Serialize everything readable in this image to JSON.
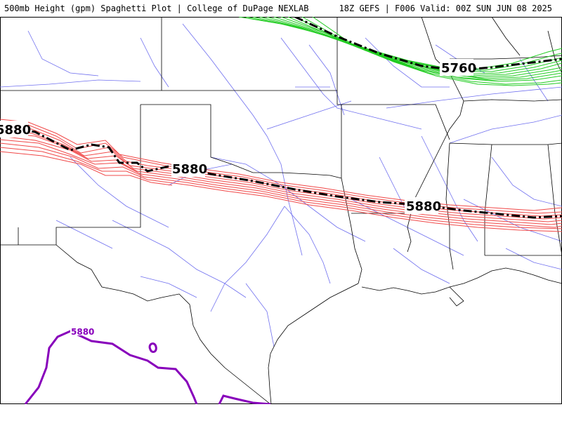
{
  "header": {
    "title_left": "500mb Height (gpm) Spaghetti Plot | College of DuPage NEXLAB",
    "title_right": "18Z GEFS | F006 Valid: 00Z SUN JUN 08 2025"
  },
  "contours": {
    "red_label": "5880",
    "green_label": "5760",
    "purple_label": "5880"
  },
  "colors": {
    "red_member": "#f04848",
    "green_member": "#22cc22",
    "mean": "#000000",
    "purple": "#8800bb",
    "roads": "#6f6fef",
    "borders": "#000000"
  }
}
